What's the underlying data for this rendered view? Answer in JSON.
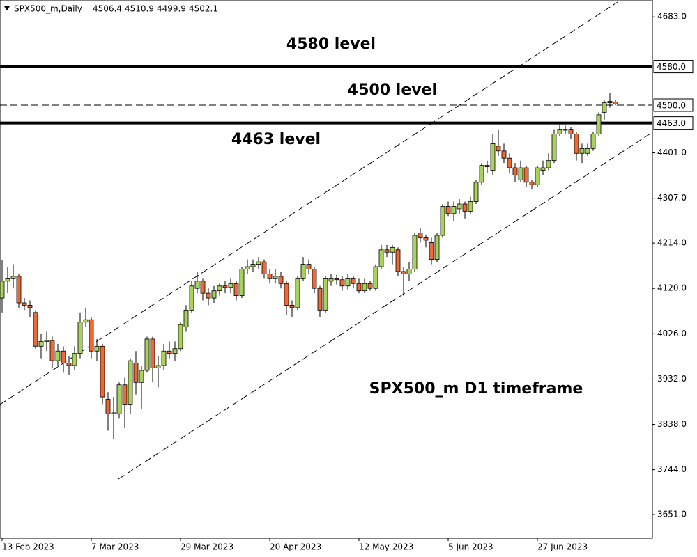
{
  "chart_data": {
    "type": "candlestick",
    "title": "SPX500_m,Daily",
    "categories": [
      "13 Feb 2023",
      null,
      null,
      null,
      null,
      null,
      null,
      null,
      null,
      null,
      null,
      null,
      null,
      null,
      null,
      null,
      "7 Mar 2023",
      null,
      null,
      null,
      null,
      null,
      null,
      null,
      null,
      null,
      null,
      null,
      null,
      null,
      null,
      null,
      "29 Mar 2023",
      null,
      null,
      null,
      null,
      null,
      null,
      null,
      null,
      null,
      null,
      null,
      null,
      null,
      null,
      null,
      "20 Apr 2023",
      null,
      null,
      null,
      null,
      null,
      null,
      null,
      null,
      null,
      null,
      null,
      null,
      null,
      null,
      null,
      "12 May 2023",
      null,
      null,
      null,
      null,
      null,
      null,
      null,
      null,
      null,
      null,
      null,
      null,
      null,
      null,
      null,
      "5 Jun 2023",
      null,
      null,
      null,
      null,
      null,
      null,
      null,
      null,
      null,
      null,
      null,
      null,
      null,
      null,
      null,
      "27 Jun 2023",
      null,
      null,
      null,
      null,
      null,
      null,
      null,
      null,
      null,
      null,
      null,
      null,
      null,
      null
    ],
    "open": [
      4100,
      4135,
      4140,
      4145,
      4090,
      4085,
      4070,
      4000,
      4010,
      4012,
      3970,
      3990,
      3965,
      3960,
      3985,
      4050,
      4055,
      3990,
      4000,
      3890,
      3860,
      3860,
      3920,
      3880,
      3965,
      3925,
      3950,
      4015,
      3955,
      3960,
      3990,
      3985,
      3995,
      4040,
      4075,
      4120,
      4135,
      4110,
      4100,
      4115,
      4125,
      4122,
      4130,
      4105,
      4160,
      4165,
      4170,
      4175,
      4150,
      4140,
      4145,
      4130,
      4085,
      4080,
      4140,
      4170,
      4160,
      4120,
      4075,
      4135,
      4140,
      4138,
      4125,
      4140,
      4130,
      4115,
      4130,
      4120,
      4165,
      4200,
      4195,
      4200,
      4155,
      4150,
      4160,
      4235,
      4225,
      4215,
      4180,
      4230,
      4290,
      4275,
      4285,
      4295,
      4280,
      4300,
      4340,
      4375,
      4365,
      4415,
      4405,
      4390,
      4370,
      4345,
      4370,
      4340,
      4335,
      4365,
      4370,
      4385,
      4440,
      4450,
      4450,
      4440,
      4400,
      4400,
      4410,
      4440,
      4485,
      4505,
      4506.4
    ],
    "high": [
      4178,
      4165,
      4170,
      4150,
      4100,
      4095,
      4075,
      4025,
      4030,
      4020,
      4005,
      4000,
      3980,
      4000,
      4070,
      4080,
      4060,
      4015,
      4005,
      3905,
      3895,
      3925,
      3935,
      3975,
      3990,
      3960,
      4020,
      4020,
      3980,
      4005,
      4010,
      4010,
      4050,
      4085,
      4135,
      4155,
      4140,
      4120,
      4125,
      4130,
      4135,
      4140,
      4135,
      4165,
      4180,
      4180,
      4185,
      4180,
      4160,
      4160,
      4155,
      4135,
      4095,
      4145,
      4185,
      4180,
      4165,
      4125,
      4145,
      4150,
      4148,
      4145,
      4150,
      4145,
      4140,
      4140,
      4135,
      4170,
      4210,
      4210,
      4210,
      4205,
      4165,
      4175,
      4235,
      4245,
      4230,
      4225,
      4235,
      4295,
      4300,
      4300,
      4305,
      4300,
      4310,
      4345,
      4380,
      4385,
      4440,
      4450,
      4420,
      4400,
      4380,
      4385,
      4375,
      4345,
      4375,
      4385,
      4400,
      4450,
      4460,
      4458,
      4455,
      4445,
      4420,
      4420,
      4445,
      4485,
      4510,
      4525,
      4510.9
    ],
    "low": [
      4070,
      4110,
      4120,
      4080,
      4075,
      4060,
      3995,
      3975,
      3990,
      3955,
      3960,
      3945,
      3940,
      3950,
      3975,
      4040,
      3975,
      3970,
      3880,
      3825,
      3808,
      3850,
      3830,
      3860,
      3900,
      3870,
      3945,
      3925,
      3915,
      3950,
      3975,
      3970,
      3990,
      4030,
      4070,
      4110,
      4095,
      4085,
      4090,
      4105,
      4110,
      4110,
      4095,
      4100,
      4150,
      4155,
      4160,
      4140,
      4130,
      4130,
      4120,
      4065,
      4060,
      4075,
      4135,
      4150,
      4110,
      4060,
      4070,
      4125,
      4128,
      4115,
      4118,
      4120,
      4110,
      4110,
      4115,
      4115,
      4160,
      4185,
      4170,
      4145,
      4105,
      4135,
      4155,
      4215,
      4205,
      4170,
      4175,
      4225,
      4270,
      4260,
      4275,
      4265,
      4275,
      4295,
      4335,
      4360,
      4355,
      4395,
      4380,
      4360,
      4340,
      4340,
      4330,
      4325,
      4330,
      4355,
      4365,
      4380,
      4435,
      4440,
      4430,
      4385,
      4380,
      4395,
      4405,
      4435,
      4470,
      4495,
      4499.9
    ],
    "close": [
      4135,
      4140,
      4145,
      4090,
      4085,
      4080,
      4000,
      4010,
      4012,
      3970,
      3990,
      3965,
      3960,
      3985,
      4050,
      4055,
      3990,
      4000,
      3895,
      3860,
      3862,
      3920,
      3880,
      3970,
      3925,
      3950,
      4015,
      3955,
      3960,
      3990,
      3985,
      3995,
      4045,
      4075,
      4125,
      4135,
      4110,
      4100,
      4115,
      4125,
      4122,
      4130,
      4105,
      4160,
      4165,
      4170,
      4175,
      4150,
      4140,
      4145,
      4130,
      4085,
      4080,
      4140,
      4170,
      4160,
      4120,
      4075,
      4140,
      4140,
      4138,
      4125,
      4140,
      4130,
      4115,
      4130,
      4120,
      4165,
      4200,
      4195,
      4205,
      4155,
      4150,
      4160,
      4230,
      4225,
      4220,
      4180,
      4230,
      4290,
      4275,
      4290,
      4295,
      4280,
      4300,
      4340,
      4375,
      4372,
      4420,
      4405,
      4390,
      4370,
      4355,
      4370,
      4340,
      4335,
      4370,
      4370,
      4385,
      4440,
      4450,
      4448,
      4440,
      4400,
      4410,
      4410,
      4440,
      4480,
      4505,
      4508,
      4502.1
    ],
    "up_color": "#a9d25a",
    "down_color": "#ec6a37",
    "ylim": [
      3602,
      4718
    ],
    "yticks": [
      {
        "value": 3651,
        "label": "3651.0"
      },
      {
        "value": 3744,
        "label": "3744.0"
      },
      {
        "value": 3838,
        "label": "3838.0"
      },
      {
        "value": 3932,
        "label": "3932.0"
      },
      {
        "value": 4026,
        "label": "4026.0"
      },
      {
        "value": 4120,
        "label": "4120.0"
      },
      {
        "value": 4214,
        "label": "4214.0"
      },
      {
        "value": 4307,
        "label": "4307.0"
      },
      {
        "value": 4401,
        "label": "4401.0"
      },
      {
        "value": 4683,
        "label": "4683.0"
      }
    ],
    "hlines": [
      {
        "value": 4580,
        "label": "4580.0",
        "style": "solid"
      },
      {
        "value": 4500,
        "label": "4500.0",
        "style": "dashed"
      },
      {
        "value": 4463,
        "label": "4463.0",
        "style": "solid"
      }
    ],
    "annotations": [
      "4580 level",
      "4500 level",
      "4463 level",
      "SPX500_m D1 timeframe"
    ]
  }
}
